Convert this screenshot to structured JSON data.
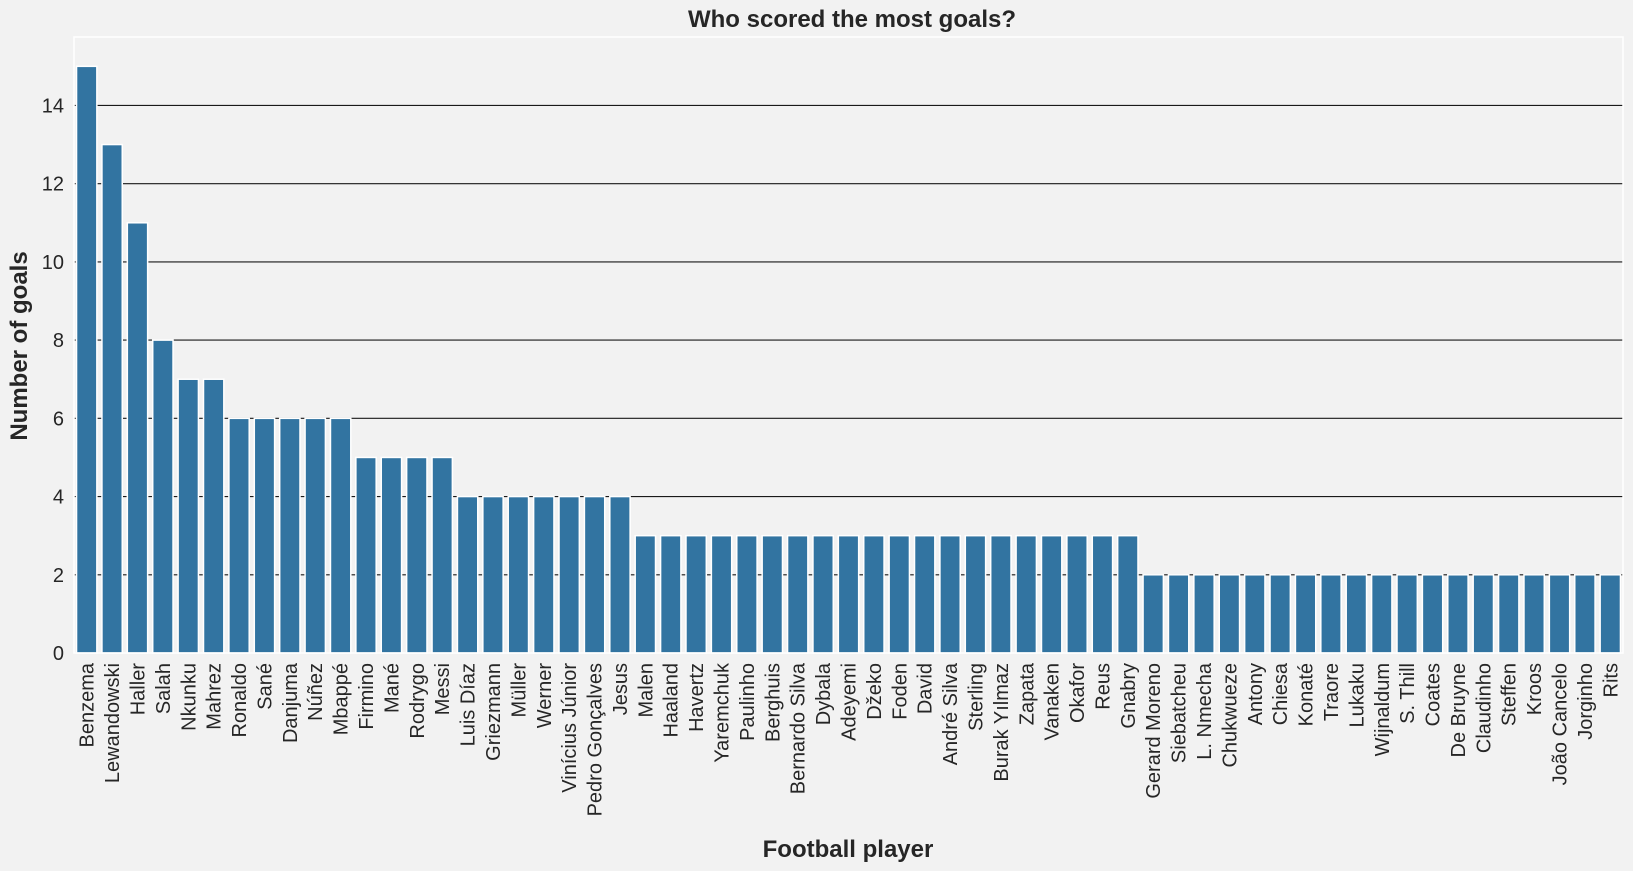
{
  "chart_data": {
    "type": "bar",
    "title": "Who scored the most goals?",
    "xlabel": "Football player",
    "ylabel": "Number of goals",
    "ylim": [
      0,
      15.75
    ],
    "yticks": [
      0,
      2,
      4,
      6,
      8,
      10,
      12,
      14
    ],
    "grid": "horizontal",
    "bar_color": "#3274a1",
    "background_color": "#f2f2f2",
    "categories": [
      "Benzema",
      "Lewandowski",
      "Haller",
      "Salah",
      "Nkunku",
      "Mahrez",
      "Ronaldo",
      "Sané",
      "Danjuma",
      "Núñez",
      "Mbappé",
      "Firmino",
      "Mané",
      "Rodrygo",
      "Messi",
      "Luis Díaz",
      "Griezmann",
      "Müller",
      "Werner",
      "Vinícius Júnior",
      "Pedro Gonçalves",
      "Jesus",
      "Malen",
      "Haaland",
      "Havertz",
      "Yaremchuk",
      "Paulinho",
      "Berghuis",
      "Bernardo Silva",
      "Dybala",
      "Adeyemi",
      "Džeko",
      "Foden",
      "David",
      "André Silva",
      "Sterling",
      "Burak Yılmaz",
      "Zapata",
      "Vanaken",
      "Okafor",
      "Reus",
      "Gnabry",
      "Gerard Moreno",
      "Siebatcheu",
      "L. Nmecha",
      "Chukwueze",
      "Antony",
      "Chiesa",
      "Konaté",
      "Traore",
      "Lukaku",
      "Wijnaldum",
      "S. Thill",
      "Coates",
      "De Bruyne",
      "Claudinho",
      "Steffen",
      "Kroos",
      "João Cancelo",
      "Jorginho",
      "Rits"
    ],
    "values": [
      15,
      13,
      11,
      8,
      7,
      7,
      6,
      6,
      6,
      6,
      6,
      5,
      5,
      5,
      5,
      4,
      4,
      4,
      4,
      4,
      4,
      4,
      3,
      3,
      3,
      3,
      3,
      3,
      3,
      3,
      3,
      3,
      3,
      3,
      3,
      3,
      3,
      3,
      3,
      3,
      3,
      3,
      2,
      2,
      2,
      2,
      2,
      2,
      2,
      2,
      2,
      2,
      2,
      2,
      2,
      2,
      2,
      2,
      2,
      2,
      2
    ]
  }
}
